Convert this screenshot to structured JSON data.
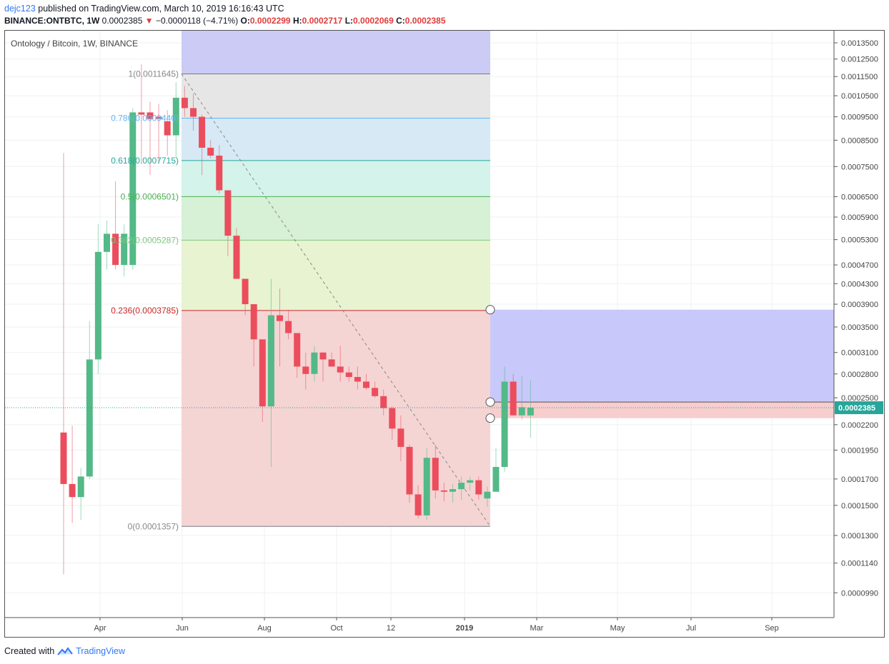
{
  "header": {
    "user": "dejc123",
    "published": "published on TradingView.com, March 10, 2019 16:16:43 UTC",
    "symbol": "BINANCE:ONTBTC, 1W",
    "price": "0.0002385",
    "change": "−0.0000118 (−4.71%)",
    "o_label": "O:",
    "o_val": "0.0002299",
    "h_label": "H:",
    "h_val": "0.0002717",
    "l_label": "L:",
    "l_val": "0.0002069",
    "c_label": "C:",
    "c_val": "0.0002385"
  },
  "footer": {
    "created": "Created with",
    "brand": "TradingView"
  },
  "colors": {
    "up": "#53b987",
    "down": "#eb4d5c",
    "text": "#131722"
  },
  "chart_data": {
    "type": "candlestick",
    "title": "Ontology / Bitcoin, 1W, BINANCE",
    "y_scale": "log",
    "ylim": [
      8.8e-05,
      0.00143
    ],
    "y_ticks": [
      "0.0013500",
      "0.0012500",
      "0.0011500",
      "0.0010500",
      "0.0009500",
      "0.0008500",
      "0.0007500",
      "0.0006500",
      "0.0005900",
      "0.0005300",
      "0.0004700",
      "0.0004300",
      "0.0003900",
      "0.0003500",
      "0.0003100",
      "0.0002800",
      "0.0002500",
      "0.0002200",
      "0.0001950",
      "0.0001700",
      "0.0001500",
      "0.0001300",
      "0.0001140",
      "0.0000990"
    ],
    "x_ticks": [
      "Apr",
      "Jun",
      "Aug",
      "Oct",
      "12",
      "2019",
      "Mar",
      "May",
      "Jul",
      "Sep"
    ],
    "last_price_label": "0.0002385",
    "candles": [
      [
        0.000212,
        0.0008,
        0.000108,
        0.000166
      ],
      [
        0.000166,
        0.000219,
        0.000138,
        0.000156
      ],
      [
        0.000156,
        0.000179,
        0.00014,
        0.000172
      ],
      [
        0.000172,
        0.00036,
        0.00017,
        0.0003
      ],
      [
        0.0003,
        0.00057,
        0.00028,
        0.0005
      ],
      [
        0.0005,
        0.00058,
        0.00046,
        0.000545
      ],
      [
        0.000545,
        0.0007,
        0.00046,
        0.00047
      ],
      [
        0.00047,
        0.00057,
        0.000445,
        0.000545
      ],
      [
        0.00047,
        0.00099,
        0.00046,
        0.00097
      ],
      [
        0.00097,
        0.00122,
        0.00076,
        0.00096
      ],
      [
        0.00097,
        0.00102,
        0.00072,
        0.00094
      ],
      [
        0.00095,
        0.00101,
        0.00076,
        0.00094
      ],
      [
        0.00093,
        0.00098,
        0.00079,
        0.00087
      ],
      [
        0.00087,
        0.00112,
        0.00078,
        0.00104
      ],
      [
        0.00104,
        0.0011,
        0.00095,
        0.00099
      ],
      [
        0.00099,
        0.00106,
        0.00089,
        0.00095
      ],
      [
        0.00095,
        0.00096,
        0.00072,
        0.00082
      ],
      [
        0.00082,
        0.00085,
        0.00078,
        0.00079
      ],
      [
        0.00079,
        0.00083,
        0.00066,
        0.00067
      ],
      [
        0.00067,
        0.00067,
        0.00049,
        0.00054
      ],
      [
        0.00054,
        0.00056,
        0.00044,
        0.00044
      ],
      [
        0.00044,
        0.00044,
        0.00037,
        0.00039
      ],
      [
        0.00039,
        0.00039,
        0.00029,
        0.00033
      ],
      [
        0.00033,
        0.00033,
        0.000223,
        0.00024
      ],
      [
        0.00024,
        0.00044,
        0.00018,
        0.00037
      ],
      [
        0.00037,
        0.00042,
        0.00029,
        0.00036
      ],
      [
        0.00036,
        0.00038,
        0.00033,
        0.00034
      ],
      [
        0.00034,
        0.00034,
        0.000275,
        0.00029
      ],
      [
        0.00029,
        0.00031,
        0.00026,
        0.00028
      ],
      [
        0.00028,
        0.00032,
        0.00027,
        0.00031
      ],
      [
        0.00031,
        0.00031,
        0.00027,
        0.0003
      ],
      [
        0.0003,
        0.00031,
        0.00029,
        0.00029
      ],
      [
        0.00029,
        0.00032,
        0.00027,
        0.000282
      ],
      [
        0.000282,
        0.00029,
        0.00027,
        0.000276
      ],
      [
        0.000276,
        0.00029,
        0.00026,
        0.00027
      ],
      [
        0.00027,
        0.00028,
        0.00026,
        0.000262
      ],
      [
        0.000262,
        0.00027,
        0.00025,
        0.000252
      ],
      [
        0.000252,
        0.00026,
        0.00023,
        0.000238
      ],
      [
        0.000238,
        0.00024,
        0.000205,
        0.000216
      ],
      [
        0.000216,
        0.00023,
        0.000185,
        0.000198
      ],
      [
        0.000198,
        0.0002,
        0.000152,
        0.000158
      ],
      [
        0.000158,
        0.000165,
        0.000141,
        0.000143
      ],
      [
        0.000143,
        0.000197,
        0.00014,
        0.000188
      ],
      [
        0.000188,
        0.0002,
        0.000155,
        0.000161
      ],
      [
        0.000161,
        0.000167,
        0.000153,
        0.00016
      ],
      [
        0.00016,
        0.000166,
        0.000152,
        0.000162
      ],
      [
        0.000162,
        0.000172,
        0.000154,
        0.000167
      ],
      [
        0.000167,
        0.000172,
        0.000161,
        0.000169
      ],
      [
        0.000169,
        0.000172,
        0.000154,
        0.000158
      ],
      [
        0.000155,
        0.000164,
        0.000149,
        0.00016
      ],
      [
        0.00016,
        0.000197,
        0.00016,
        0.00018
      ],
      [
        0.00018,
        0.00029,
        0.000176,
        0.00027
      ],
      [
        0.00027,
        0.00028,
        0.000231,
        0.00023
      ],
      [
        0.00023,
        0.000277,
        0.000225,
        0.000239
      ],
      [
        0.0002299,
        0.0002717,
        0.0002069,
        0.0002385
      ]
    ],
    "fib": {
      "high": 0.0011645,
      "low": 0.0001357,
      "levels": [
        {
          "ratio": 1,
          "label": "1(0.0011645)",
          "value": 0.0011645,
          "line": "#787b86",
          "fill": "#e6e6e6"
        },
        {
          "ratio": 0.786,
          "label": "0.786(0.0009440)",
          "value": 0.000944,
          "line": "#64b5f6",
          "fill": "#d6e9f5"
        },
        {
          "ratio": 0.618,
          "label": "0.618(0.0007715)",
          "value": 0.0007715,
          "line": "#26a69a",
          "fill": "#d4f3ea"
        },
        {
          "ratio": 0.5,
          "label": "0.5(0.0006501)",
          "value": 0.0006501,
          "line": "#4caf50",
          "fill": "#d6f1d6"
        },
        {
          "ratio": 0.382,
          "label": "0.382(0.0005287)",
          "value": 0.0005287,
          "line": "#81c784",
          "fill": "#e7f3d1"
        },
        {
          "ratio": 0.236,
          "label": "0.236(0.0003785)",
          "value": 0.0003785,
          "line": "#c62828",
          "fill": "#f5d4d4"
        },
        {
          "ratio": 0,
          "label": "0(0.0001357)",
          "value": 0.0001357,
          "line": "#787b86",
          "fill": ""
        }
      ]
    },
    "position": {
      "entry": 0.000245,
      "target": 0.00038,
      "stop": 0.000227
    }
  }
}
